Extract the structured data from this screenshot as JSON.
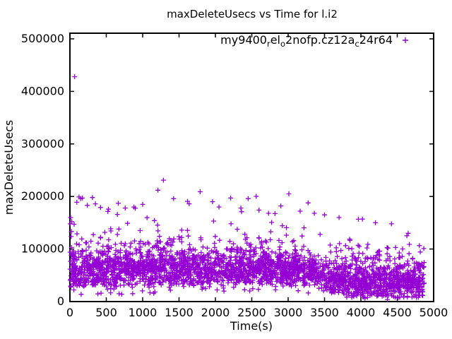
{
  "figure": {
    "background": "#ffffff",
    "text_color": "#000000",
    "border_color": "#000000"
  },
  "chart_data": {
    "type": "scatter",
    "title": "maxDeleteUsecs vs Time for l.i2",
    "xlabel": "Time(s)",
    "ylabel": "maxDeleteUsecs",
    "xlim": [
      0,
      5000
    ],
    "ylim": [
      0,
      500000
    ],
    "x_ticks": [
      0,
      500,
      1000,
      1500,
      2000,
      2500,
      3000,
      3500,
      4000,
      4500,
      5000
    ],
    "y_ticks": [
      0,
      100000,
      200000,
      300000,
      400000,
      500000
    ],
    "grid": false,
    "legend": {
      "position": "top-right-inside",
      "marker": "plus"
    },
    "series": [
      {
        "name_segments": [
          {
            "text": "my9400"
          },
          {
            "text": "r",
            "subscript": true
          },
          {
            "text": "el"
          },
          {
            "text": "o",
            "subscript": true
          },
          {
            "text": "2nofp.cz12a"
          },
          {
            "text": "c",
            "subscript": true
          },
          {
            "text": "24r64"
          }
        ],
        "color": "#9400d3",
        "marker": "plus",
        "x_data_range": [
          0,
          4870
        ],
        "visible_outliers": [
          [
            65,
            428000
          ],
          [
            1285,
            231000
          ],
          [
            5,
            148000
          ],
          [
            10,
            160000
          ],
          [
            25,
            152000
          ],
          [
            95,
            189000
          ],
          [
            125,
            199000
          ],
          [
            148,
            196000
          ],
          [
            172,
            197000
          ],
          [
            240,
            183000
          ],
          [
            310,
            198000
          ],
          [
            350,
            186000
          ],
          [
            420,
            179000
          ],
          [
            530,
            176000
          ],
          [
            665,
            187000
          ],
          [
            760,
            178000
          ],
          [
            880,
            180000
          ],
          [
            1000,
            185000
          ],
          [
            1210,
            212000
          ],
          [
            1425,
            196000
          ],
          [
            1640,
            186000
          ],
          [
            1790,
            209000
          ],
          [
            1960,
            190000
          ],
          [
            2050,
            180000
          ],
          [
            2210,
            197000
          ],
          [
            2350,
            178000
          ],
          [
            2450,
            196000
          ],
          [
            2600,
            174000
          ],
          [
            2730,
            168000
          ],
          [
            2900,
            182000
          ],
          [
            3010,
            205000
          ],
          [
            3165,
            172000
          ],
          [
            3360,
            168000
          ],
          [
            3500,
            165000
          ],
          [
            3700,
            160000
          ],
          [
            4020,
            157000
          ],
          [
            4200,
            150000
          ],
          [
            4420,
            148000
          ],
          [
            4650,
            130000
          ]
        ],
        "dense_band_model": {
          "point_count": 2900,
          "seed": 1234567,
          "shape_exponent": 1.35,
          "breakpoints_t_lo_hi": [
            [
              0,
              26000,
              112000
            ],
            [
              600,
              27000,
              115000
            ],
            [
              1500,
              30000,
              113000
            ],
            [
              2600,
              32000,
              112000
            ],
            [
              3250,
              31000,
              108000
            ],
            [
              3600,
              13000,
              100000
            ],
            [
              3950,
              4500,
              93000
            ],
            [
              4400,
              3500,
              90000
            ],
            [
              4870,
              3000,
              93000
            ]
          ],
          "upper_tail": {
            "probability": 0.045,
            "exp_scale": 18000,
            "cap_breakpoints": [
              [
                0,
                205000
              ],
              [
                3300,
                205000
              ],
              [
                3700,
                165000
              ],
              [
                4870,
                140000
              ]
            ]
          },
          "below_band": {
            "probability": 0.025,
            "max_drop": 14000,
            "min_value": 9000,
            "t_max": 3300
          }
        }
      }
    ]
  }
}
